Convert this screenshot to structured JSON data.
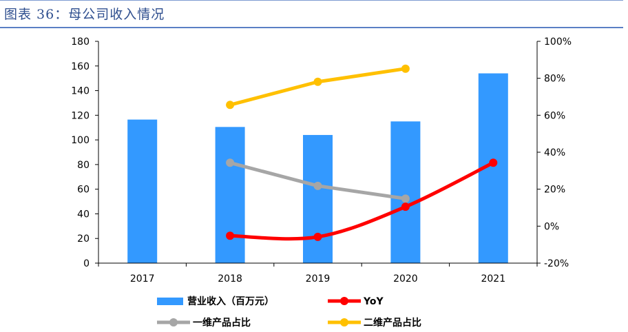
{
  "header": {
    "title": "图表 36：母公司收入情况"
  },
  "colors": {
    "bar": "#3399ff",
    "yoy": "#ff0000",
    "share_1d": "#a6a6a6",
    "share_2d": "#ffc000",
    "header": "#2f4f8f"
  },
  "chart_data": {
    "type": "bar",
    "categories": [
      "2017",
      "2018",
      "2019",
      "2020",
      "2021"
    ],
    "series": [
      {
        "name": "营业收入（百万元）",
        "type": "bar",
        "axis": "left",
        "values": [
          116.5,
          110.5,
          104,
          115,
          154
        ]
      },
      {
        "name": "YoY",
        "type": "line",
        "axis": "right",
        "smooth": true,
        "values": [
          null,
          -5.2,
          -5.8,
          10.5,
          34.3
        ]
      },
      {
        "name": "一维产品占比",
        "type": "line",
        "axis": "right",
        "values": [
          null,
          34.3,
          21.8,
          null,
          null
        ]
      },
      {
        "name": "一维产品占比_2020",
        "type": "line",
        "axis": "right",
        "values": [
          null,
          null,
          null,
          14.9,
          null
        ]
      },
      {
        "name": "二维产品占比",
        "type": "line",
        "axis": "right",
        "values": [
          null,
          65.6,
          78.1,
          85.2,
          null
        ]
      }
    ],
    "y_left": {
      "min": 0,
      "max": 180,
      "ticks": [
        "0",
        "20",
        "40",
        "60",
        "80",
        "100",
        "120",
        "140",
        "160",
        "180"
      ]
    },
    "y_right": {
      "min": -20,
      "max": 100,
      "ticks": [
        "-20%",
        "0%",
        "20%",
        "40%",
        "60%",
        "80%",
        "100%"
      ]
    },
    "legend_position": "bottom",
    "grid": false
  }
}
